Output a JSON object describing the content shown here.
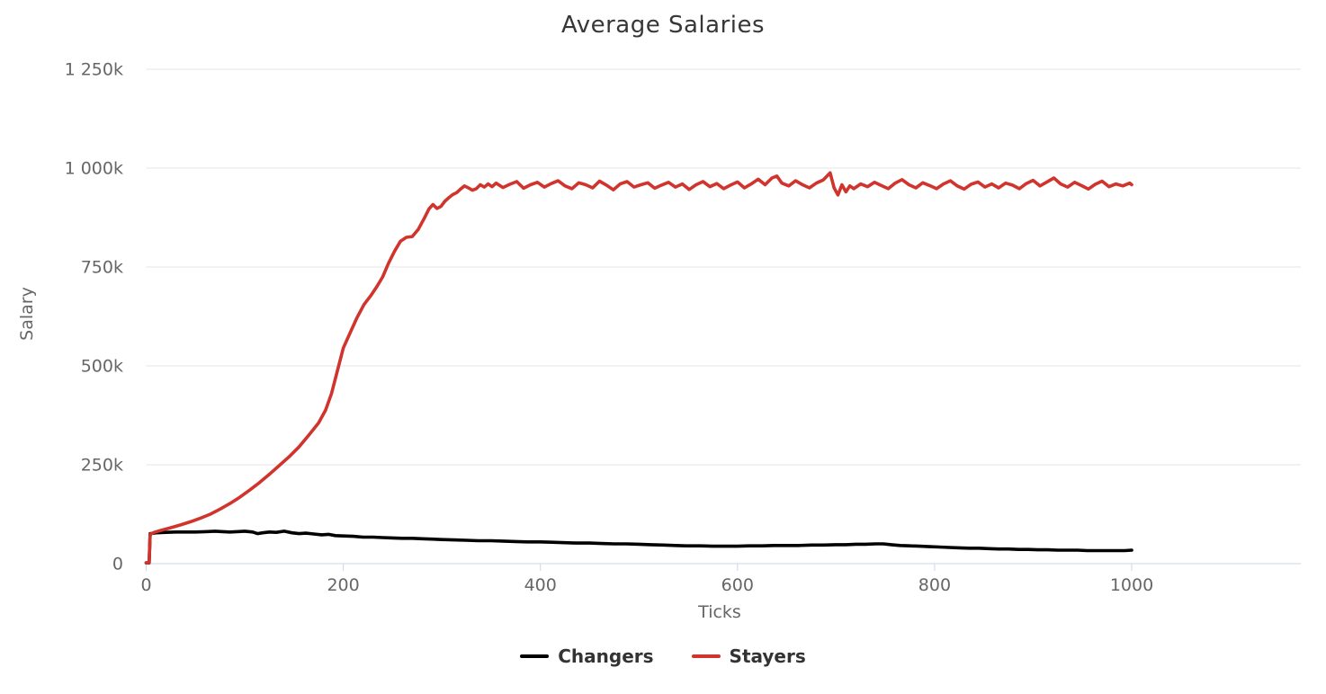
{
  "colors": {
    "background": "#ffffff",
    "grid": "#e6e6e6",
    "axis_line": "#ccd6eb",
    "tick_label": "#666666",
    "title_text": "#373737",
    "legend_text": "#333333",
    "changers": "#000000",
    "stayers": "#d0342c"
  },
  "chart_data": {
    "type": "line",
    "title": "Average Salaries",
    "xlabel": "Ticks",
    "ylabel": "Salary",
    "grid": "horizontal-only",
    "legend_position": "bottom-center",
    "xlim": [
      0,
      1175
    ],
    "ylim": [
      0,
      1250000
    ],
    "y_values_unit": "thousands",
    "x_ticks": [
      {
        "value": 0,
        "label": "0"
      },
      {
        "value": 200,
        "label": "200"
      },
      {
        "value": 400,
        "label": "400"
      },
      {
        "value": 600,
        "label": "600"
      },
      {
        "value": 800,
        "label": "800"
      },
      {
        "value": 1000,
        "label": "1000"
      }
    ],
    "y_ticks": [
      {
        "value": 0,
        "label": "0"
      },
      {
        "value": 250,
        "label": "250k"
      },
      {
        "value": 500,
        "label": "500k"
      },
      {
        "value": 750,
        "label": "750k"
      },
      {
        "value": 1000,
        "label": "1 000k"
      },
      {
        "value": 1250,
        "label": "1 250k"
      }
    ],
    "series": [
      {
        "name": "Changers",
        "color": "#000000",
        "points": [
          [
            0,
            2
          ],
          [
            3,
            2
          ],
          [
            4,
            76
          ],
          [
            10,
            78
          ],
          [
            20,
            79
          ],
          [
            30,
            80
          ],
          [
            40,
            80
          ],
          [
            50,
            80
          ],
          [
            60,
            81
          ],
          [
            70,
            82
          ],
          [
            78,
            81
          ],
          [
            85,
            80
          ],
          [
            92,
            81
          ],
          [
            100,
            82
          ],
          [
            108,
            80
          ],
          [
            113,
            76
          ],
          [
            118,
            78
          ],
          [
            125,
            80
          ],
          [
            132,
            79
          ],
          [
            140,
            82
          ],
          [
            148,
            78
          ],
          [
            155,
            76
          ],
          [
            162,
            77
          ],
          [
            170,
            75
          ],
          [
            178,
            73
          ],
          [
            185,
            74
          ],
          [
            192,
            71
          ],
          [
            200,
            70
          ],
          [
            210,
            69
          ],
          [
            220,
            67
          ],
          [
            230,
            67
          ],
          [
            240,
            66
          ],
          [
            250,
            65
          ],
          [
            260,
            64
          ],
          [
            270,
            64
          ],
          [
            280,
            63
          ],
          [
            290,
            62
          ],
          [
            300,
            61
          ],
          [
            312,
            60
          ],
          [
            325,
            59
          ],
          [
            337,
            58
          ],
          [
            350,
            58
          ],
          [
            362,
            57
          ],
          [
            375,
            56
          ],
          [
            387,
            55
          ],
          [
            400,
            55
          ],
          [
            412,
            54
          ],
          [
            425,
            53
          ],
          [
            437,
            52
          ],
          [
            450,
            52
          ],
          [
            462,
            51
          ],
          [
            475,
            50
          ],
          [
            487,
            50
          ],
          [
            500,
            49
          ],
          [
            512,
            48
          ],
          [
            525,
            47
          ],
          [
            537,
            46
          ],
          [
            550,
            45
          ],
          [
            562,
            45
          ],
          [
            575,
            44
          ],
          [
            587,
            44
          ],
          [
            600,
            44
          ],
          [
            612,
            45
          ],
          [
            625,
            45
          ],
          [
            637,
            46
          ],
          [
            650,
            46
          ],
          [
            662,
            46
          ],
          [
            675,
            47
          ],
          [
            687,
            47
          ],
          [
            700,
            48
          ],
          [
            710,
            48
          ],
          [
            720,
            49
          ],
          [
            730,
            49
          ],
          [
            740,
            50
          ],
          [
            748,
            50
          ],
          [
            756,
            48
          ],
          [
            765,
            46
          ],
          [
            775,
            45
          ],
          [
            785,
            44
          ],
          [
            795,
            43
          ],
          [
            805,
            42
          ],
          [
            815,
            41
          ],
          [
            825,
            40
          ],
          [
            835,
            39
          ],
          [
            845,
            39
          ],
          [
            855,
            38
          ],
          [
            865,
            37
          ],
          [
            875,
            37
          ],
          [
            885,
            36
          ],
          [
            895,
            36
          ],
          [
            905,
            35
          ],
          [
            915,
            35
          ],
          [
            925,
            34
          ],
          [
            935,
            34
          ],
          [
            945,
            34
          ],
          [
            955,
            33
          ],
          [
            965,
            33
          ],
          [
            975,
            33
          ],
          [
            985,
            33
          ],
          [
            993,
            33
          ],
          [
            1000,
            34
          ]
        ]
      },
      {
        "name": "Stayers",
        "color": "#d0342c",
        "points": [
          [
            0,
            2
          ],
          [
            3,
            3
          ],
          [
            4,
            74
          ],
          [
            8,
            79
          ],
          [
            15,
            84
          ],
          [
            25,
            91
          ],
          [
            35,
            98
          ],
          [
            45,
            106
          ],
          [
            55,
            115
          ],
          [
            65,
            125
          ],
          [
            75,
            138
          ],
          [
            85,
            152
          ],
          [
            95,
            168
          ],
          [
            105,
            186
          ],
          [
            115,
            205
          ],
          [
            125,
            226
          ],
          [
            135,
            248
          ],
          [
            145,
            270
          ],
          [
            155,
            295
          ],
          [
            165,
            325
          ],
          [
            175,
            356
          ],
          [
            182,
            388
          ],
          [
            188,
            430
          ],
          [
            194,
            487
          ],
          [
            200,
            545
          ],
          [
            207,
            584
          ],
          [
            214,
            622
          ],
          [
            221,
            655
          ],
          [
            228,
            678
          ],
          [
            234,
            700
          ],
          [
            240,
            725
          ],
          [
            246,
            760
          ],
          [
            252,
            790
          ],
          [
            258,
            815
          ],
          [
            264,
            825
          ],
          [
            270,
            827
          ],
          [
            276,
            845
          ],
          [
            282,
            872
          ],
          [
            287,
            897
          ],
          [
            291,
            908
          ],
          [
            295,
            898
          ],
          [
            299,
            903
          ],
          [
            303,
            916
          ],
          [
            307,
            925
          ],
          [
            311,
            933
          ],
          [
            315,
            938
          ],
          [
            319,
            947
          ],
          [
            323,
            955
          ],
          [
            327,
            950
          ],
          [
            331,
            944
          ],
          [
            335,
            948
          ],
          [
            339,
            958
          ],
          [
            343,
            952
          ],
          [
            347,
            960
          ],
          [
            351,
            953
          ],
          [
            355,
            962
          ],
          [
            362,
            951
          ],
          [
            369,
            959
          ],
          [
            376,
            966
          ],
          [
            383,
            949
          ],
          [
            390,
            958
          ],
          [
            397,
            964
          ],
          [
            404,
            952
          ],
          [
            411,
            961
          ],
          [
            418,
            968
          ],
          [
            425,
            955
          ],
          [
            432,
            948
          ],
          [
            439,
            963
          ],
          [
            446,
            958
          ],
          [
            453,
            950
          ],
          [
            460,
            967
          ],
          [
            467,
            957
          ],
          [
            474,
            945
          ],
          [
            481,
            960
          ],
          [
            488,
            966
          ],
          [
            495,
            952
          ],
          [
            502,
            958
          ],
          [
            509,
            963
          ],
          [
            516,
            949
          ],
          [
            523,
            957
          ],
          [
            530,
            964
          ],
          [
            537,
            952
          ],
          [
            544,
            960
          ],
          [
            551,
            946
          ],
          [
            558,
            958
          ],
          [
            565,
            966
          ],
          [
            572,
            953
          ],
          [
            579,
            961
          ],
          [
            586,
            948
          ],
          [
            593,
            957
          ],
          [
            600,
            965
          ],
          [
            607,
            950
          ],
          [
            614,
            960
          ],
          [
            621,
            972
          ],
          [
            628,
            958
          ],
          [
            635,
            975
          ],
          [
            640,
            980
          ],
          [
            645,
            962
          ],
          [
            652,
            955
          ],
          [
            659,
            968
          ],
          [
            666,
            958
          ],
          [
            673,
            950
          ],
          [
            680,
            962
          ],
          [
            687,
            970
          ],
          [
            694,
            988
          ],
          [
            698,
            950
          ],
          [
            702,
            932
          ],
          [
            706,
            958
          ],
          [
            710,
            940
          ],
          [
            714,
            955
          ],
          [
            718,
            948
          ],
          [
            725,
            960
          ],
          [
            732,
            953
          ],
          [
            739,
            964
          ],
          [
            746,
            956
          ],
          [
            753,
            948
          ],
          [
            760,
            962
          ],
          [
            767,
            971
          ],
          [
            774,
            958
          ],
          [
            781,
            950
          ],
          [
            788,
            963
          ],
          [
            795,
            956
          ],
          [
            802,
            948
          ],
          [
            809,
            960
          ],
          [
            816,
            968
          ],
          [
            823,
            955
          ],
          [
            830,
            947
          ],
          [
            837,
            959
          ],
          [
            844,
            965
          ],
          [
            851,
            952
          ],
          [
            858,
            960
          ],
          [
            865,
            950
          ],
          [
            872,
            962
          ],
          [
            879,
            957
          ],
          [
            886,
            948
          ],
          [
            893,
            961
          ],
          [
            900,
            969
          ],
          [
            907,
            955
          ],
          [
            914,
            965
          ],
          [
            921,
            975
          ],
          [
            928,
            960
          ],
          [
            935,
            952
          ],
          [
            942,
            964
          ],
          [
            949,
            956
          ],
          [
            956,
            947
          ],
          [
            963,
            959
          ],
          [
            970,
            967
          ],
          [
            977,
            953
          ],
          [
            984,
            960
          ],
          [
            991,
            955
          ],
          [
            998,
            962
          ],
          [
            1000,
            958
          ]
        ]
      }
    ]
  }
}
